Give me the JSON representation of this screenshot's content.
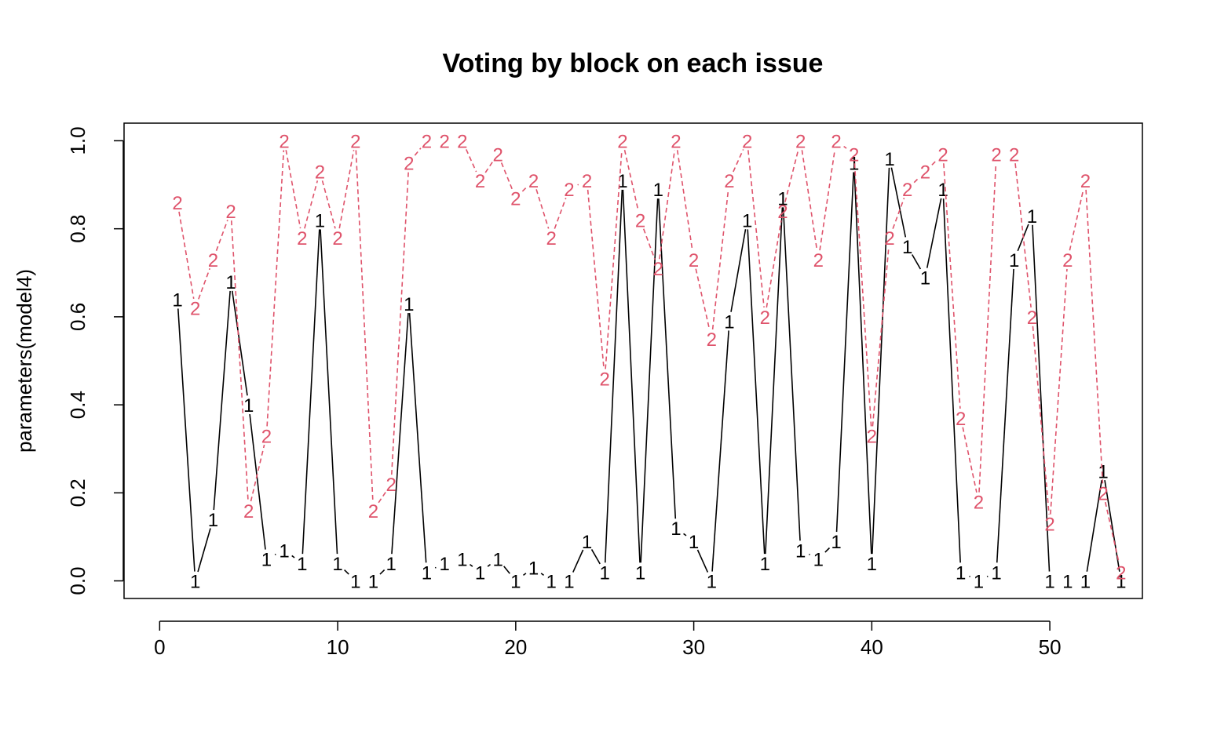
{
  "chart_data": {
    "type": "line",
    "title": "Voting by block on each issue",
    "xlabel": "",
    "ylabel": "parameters(model4)",
    "xlim": [
      -2,
      55.2
    ],
    "ylim": [
      -0.04,
      1.04
    ],
    "x_ticks": [
      "0",
      "10",
      "20",
      "30",
      "40",
      "50"
    ],
    "y_ticks": [
      "0.0",
      "0.2",
      "0.4",
      "0.6",
      "0.8",
      "1.0"
    ],
    "grid": false,
    "legend": "none",
    "x": [
      1,
      2,
      3,
      4,
      5,
      6,
      7,
      8,
      9,
      10,
      11,
      12,
      13,
      14,
      15,
      16,
      17,
      18,
      19,
      20,
      21,
      22,
      23,
      24,
      25,
      26,
      27,
      28,
      29,
      30,
      31,
      32,
      33,
      34,
      35,
      36,
      37,
      38,
      39,
      40,
      41,
      42,
      43,
      44,
      45,
      46,
      47,
      48,
      49,
      50,
      51,
      52,
      53,
      54
    ],
    "series": [
      {
        "name": "1",
        "color": "#000000",
        "linestyle": "solid",
        "values": [
          0.64,
          0.0,
          0.14,
          0.68,
          0.4,
          0.05,
          0.07,
          0.04,
          0.82,
          0.04,
          0.0,
          0.0,
          0.04,
          0.63,
          0.02,
          0.04,
          0.05,
          0.02,
          0.05,
          0.0,
          0.03,
          0.0,
          0.0,
          0.09,
          0.02,
          0.91,
          0.02,
          0.89,
          0.12,
          0.09,
          0.0,
          0.59,
          0.82,
          0.04,
          0.87,
          0.07,
          0.05,
          0.09,
          0.95,
          0.04,
          0.96,
          0.76,
          0.69,
          0.89,
          0.02,
          0.0,
          0.02,
          0.73,
          0.83,
          0.0,
          0.0,
          0.0,
          0.25,
          0.0
        ]
      },
      {
        "name": "2",
        "color": "#df536b",
        "linestyle": "dashed",
        "values": [
          0.86,
          0.62,
          0.73,
          0.84,
          0.16,
          0.33,
          1.0,
          0.78,
          0.93,
          0.78,
          1.0,
          0.16,
          0.22,
          0.95,
          1.0,
          1.0,
          1.0,
          0.91,
          0.97,
          0.87,
          0.91,
          0.78,
          0.89,
          0.91,
          0.46,
          1.0,
          0.82,
          0.71,
          1.0,
          0.73,
          0.55,
          0.91,
          1.0,
          0.6,
          0.84,
          1.0,
          0.73,
          1.0,
          0.97,
          0.33,
          0.78,
          0.89,
          0.93,
          0.97,
          0.37,
          0.18,
          0.97,
          0.97,
          0.6,
          0.13,
          0.73,
          0.91,
          0.2,
          0.02
        ]
      }
    ]
  }
}
